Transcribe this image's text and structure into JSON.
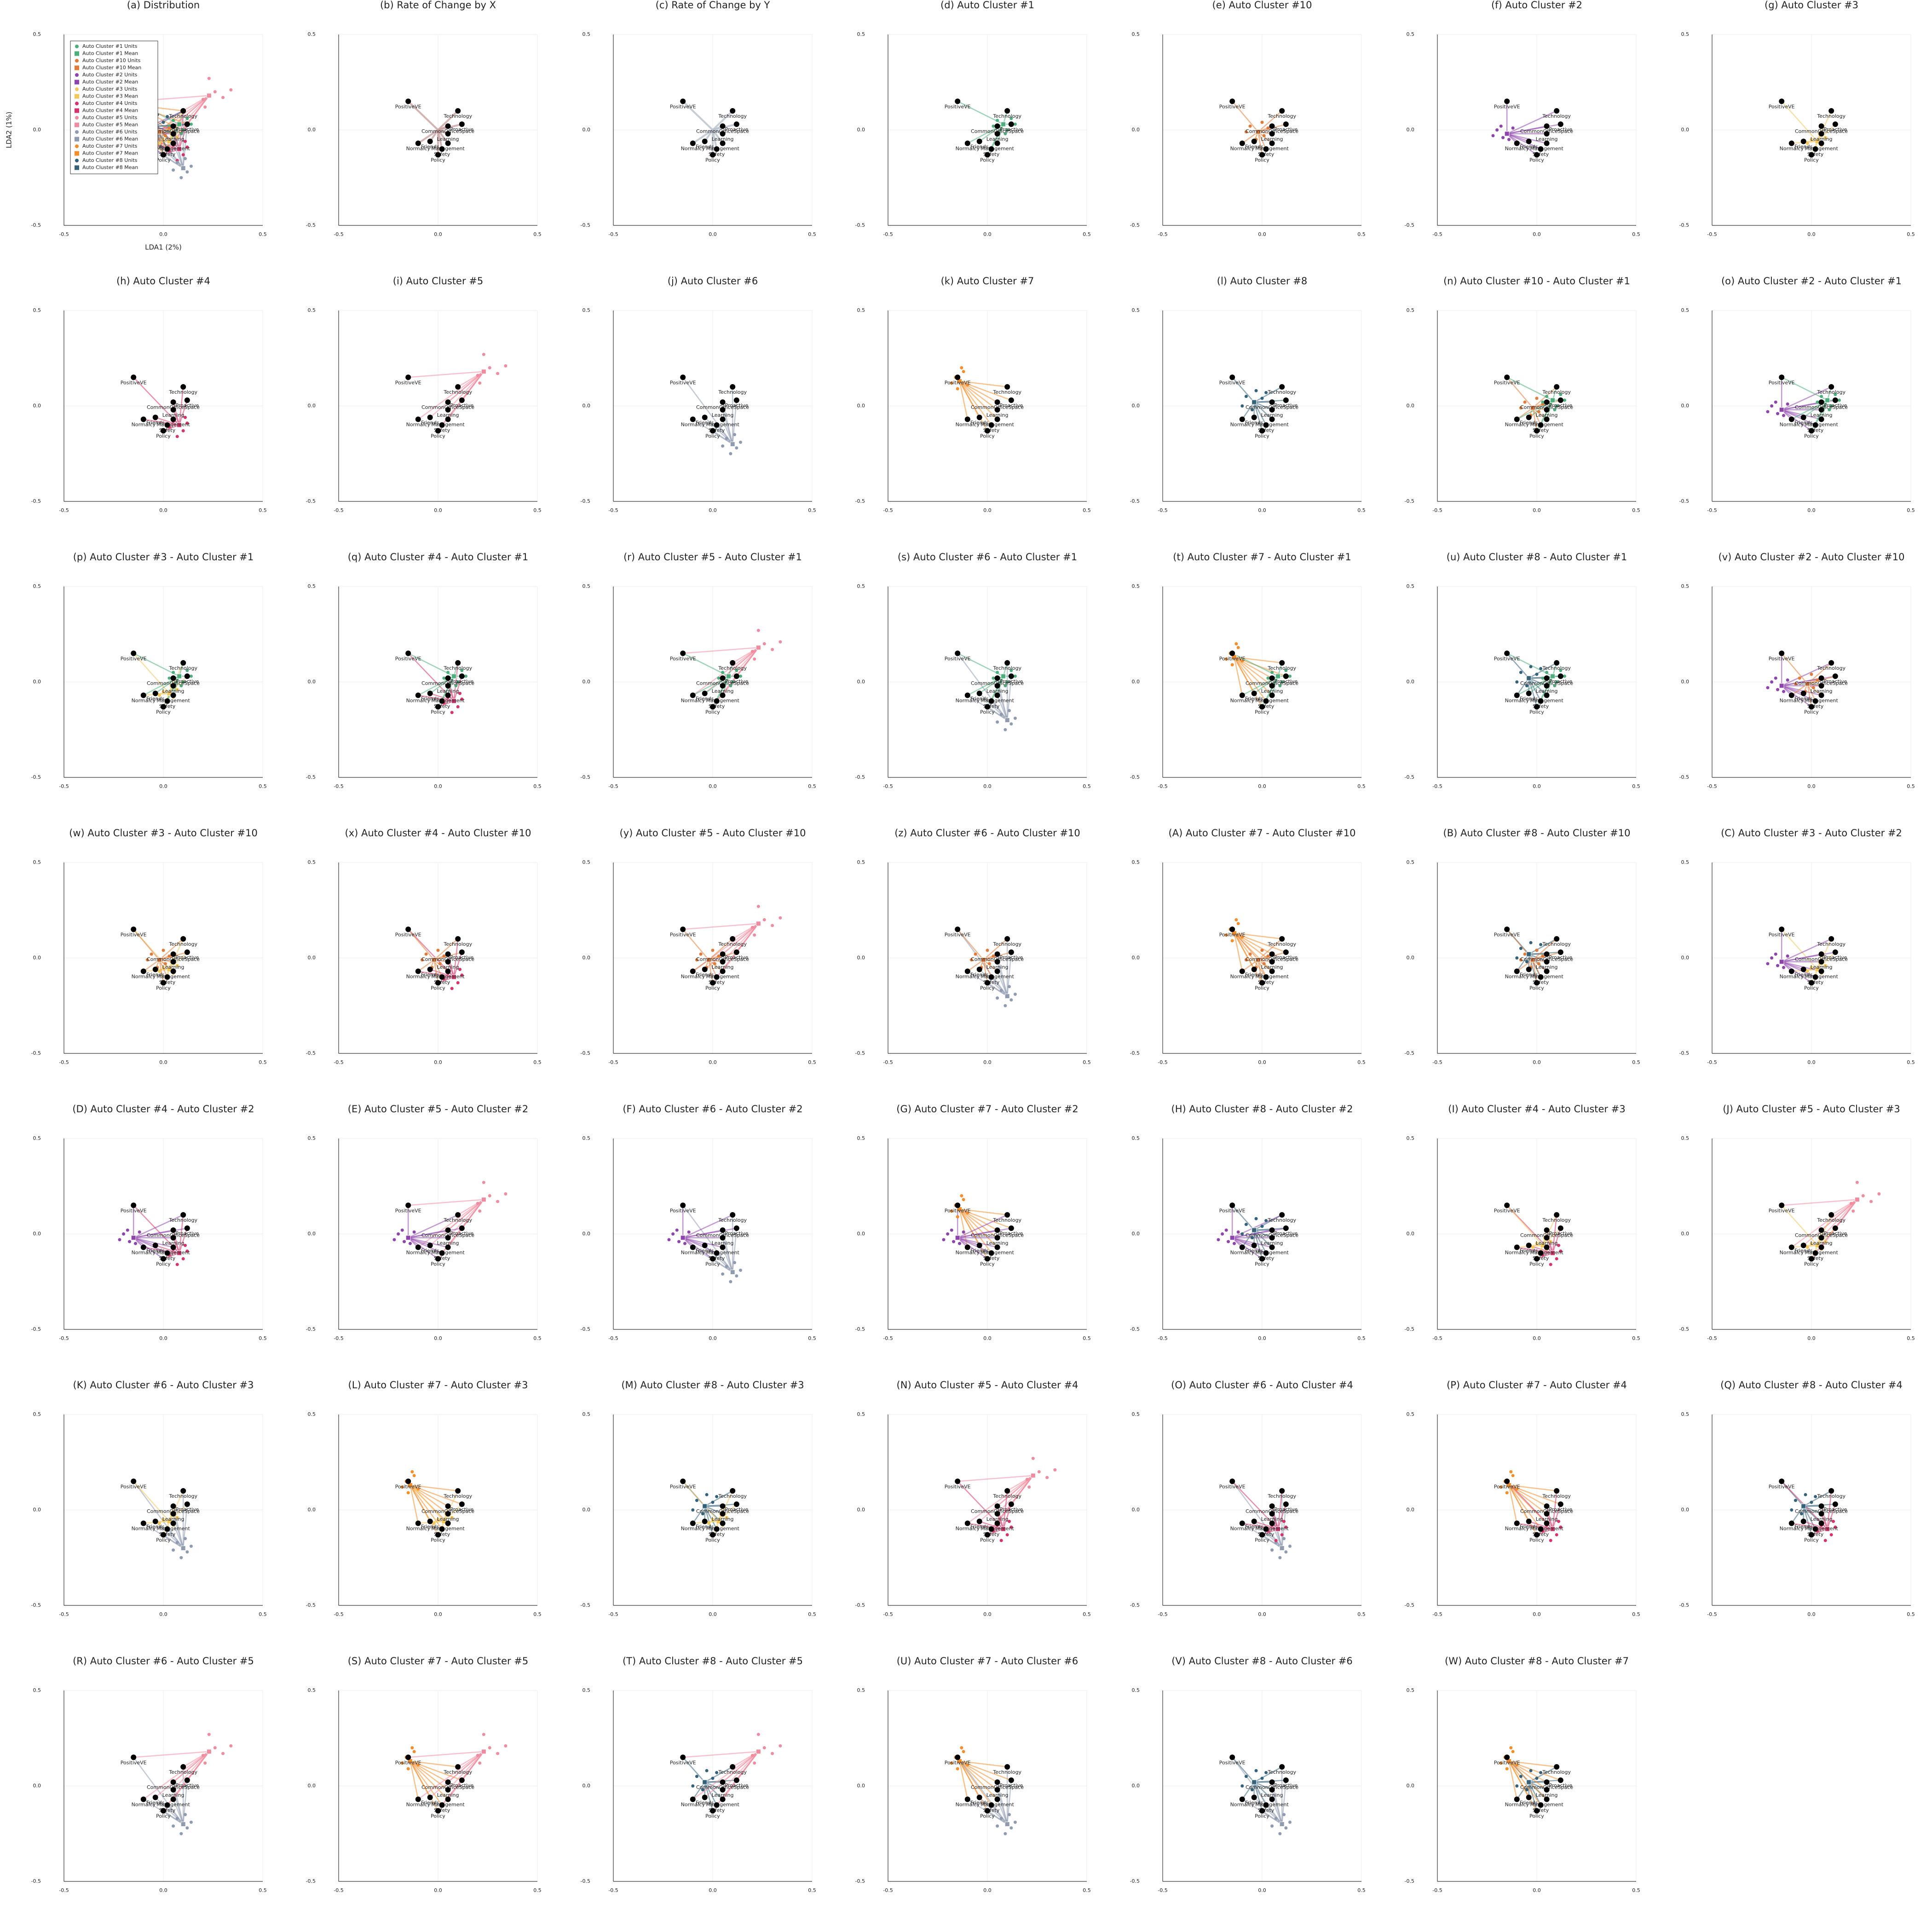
{
  "chart_data": {
    "type": "scatter",
    "xlabel": "LDA1 (2%)",
    "ylabel": "LDA2 (1%)",
    "xlim": [
      -0.5,
      0.5
    ],
    "ylim": [
      -0.5,
      0.5
    ],
    "xticks": [
      -0.5,
      {
        "value": 0,
        "label": "0.0"
      },
      0.5
    ],
    "yticks": [
      -0.5,
      {
        "value": 0,
        "label": "0.0"
      },
      0.5
    ],
    "grid": true,
    "legend": "upper left",
    "clusters": [
      {
        "units_label": "Auto Cluster #1 Units",
        "mean_label": "Auto Cluster #1 Mean",
        "color": "#4daf7c",
        "mean_x": 0.08,
        "mean_y": 0.03,
        "units_x": [
          0.05,
          0.1,
          0.12,
          0.03,
          0.09,
          0.14
        ],
        "units_y": [
          0.05,
          0.0,
          0.06,
          0.02,
          -0.02,
          0.03
        ]
      },
      {
        "units_label": "Auto Cluster #10 Units",
        "mean_label": "Auto Cluster #10 Mean",
        "color": "#e07b39",
        "mean_x": -0.02,
        "mean_y": -0.01,
        "units_x": [
          -0.06,
          0.01,
          -0.03,
          0.03,
          -0.08,
          0.0
        ],
        "units_y": [
          0.02,
          -0.03,
          -0.05,
          0.01,
          -0.01,
          0.04
        ]
      },
      {
        "units_label": "Auto Cluster #2 Units",
        "mean_label": "Auto Cluster #2 Mean",
        "color": "#8e44ad",
        "mean_x": -0.15,
        "mean_y": -0.02,
        "units_x": [
          -0.2,
          -0.17,
          -0.12,
          -0.22,
          -0.14,
          -0.18
        ],
        "units_y": [
          0.0,
          -0.04,
          0.01,
          -0.03,
          -0.05,
          0.02
        ]
      },
      {
        "units_label": "Auto Cluster #3 Units",
        "mean_label": "Auto Cluster #3 Mean",
        "color": "#f2c75c",
        "mean_x": 0.03,
        "mean_y": -0.06,
        "units_x": [
          0.0,
          0.05,
          -0.02,
          0.07,
          0.02,
          0.04
        ],
        "units_y": [
          -0.05,
          -0.08,
          -0.07,
          -0.04,
          -0.1,
          -0.02
        ]
      },
      {
        "units_label": "Auto Cluster #4 Units",
        "mean_label": "Auto Cluster #4 Mean",
        "color": "#d6336c",
        "mean_x": 0.08,
        "mean_y": -0.1,
        "units_x": [
          0.05,
          0.1,
          0.12,
          0.07,
          0.03,
          0.11
        ],
        "units_y": [
          -0.08,
          -0.13,
          -0.09,
          -0.16,
          -0.11,
          -0.06
        ]
      },
      {
        "units_label": "Auto Cluster #5 Units",
        "mean_label": "Auto Cluster #5 Mean",
        "color": "#f08ca0",
        "mean_x": 0.23,
        "mean_y": 0.18,
        "units_x": [
          0.2,
          0.26,
          0.23,
          0.3,
          0.21,
          0.34
        ],
        "units_y": [
          0.16,
          0.2,
          0.27,
          0.17,
          0.12,
          0.21
        ]
      },
      {
        "units_label": "Auto Cluster #6 Units",
        "mean_label": "Auto Cluster #6 Mean",
        "color": "#8f9bb0",
        "mean_x": 0.1,
        "mean_y": -0.2,
        "units_x": [
          0.07,
          0.12,
          0.09,
          0.14,
          0.05,
          0.11
        ],
        "units_y": [
          -0.17,
          -0.22,
          -0.25,
          -0.19,
          -0.21,
          -0.15
        ]
      },
      {
        "units_label": "Auto Cluster #7 Units",
        "mean_label": "Auto Cluster #7 Mean",
        "color": "#f28e2b",
        "mean_x": -0.14,
        "mean_y": 0.13,
        "units_x": [
          -0.16,
          -0.12,
          -0.1,
          -0.18,
          -0.13,
          -0.15
        ],
        "units_y": [
          0.15,
          0.18,
          0.11,
          0.12,
          0.2,
          0.09
        ]
      },
      {
        "units_label": "Auto Cluster #8 Units",
        "mean_label": "Auto Cluster #8 Mean",
        "color": "#34627a",
        "mean_x": -0.04,
        "mean_y": 0.02,
        "units_x": [
          -0.08,
          0.0,
          -0.05,
          -0.1,
          0.02,
          -0.03
        ],
        "units_y": [
          0.05,
          0.04,
          -0.02,
          0.0,
          0.07,
          0.08
        ]
      }
    ],
    "features": [
      {
        "name": "PositiveVE",
        "x": -0.15,
        "y": 0.15
      },
      {
        "name": "Technology",
        "x": 0.1,
        "y": 0.1
      },
      {
        "name": "CommonOfficeSpace",
        "x": 0.05,
        "y": 0.02
      },
      {
        "name": "Proactive",
        "x": 0.12,
        "y": 0.03
      },
      {
        "name": "Learning",
        "x": 0.05,
        "y": -0.02
      },
      {
        "name": "Normalcy",
        "x": -0.1,
        "y": -0.07
      },
      {
        "name": "Friends",
        "x": -0.04,
        "y": -0.06
      },
      {
        "name": "Management",
        "x": 0.05,
        "y": -0.07
      },
      {
        "name": "Safety",
        "x": 0.02,
        "y": -0.1
      },
      {
        "name": "Policy",
        "x": 0.0,
        "y": -0.13
      }
    ],
    "panels": [
      {
        "title": "(a) Distribution",
        "clusters": [
          0,
          1,
          2,
          3,
          4,
          5,
          6,
          7,
          8
        ]
      },
      {
        "title": "(b) Rate of Change by X",
        "clusters": [],
        "line_color": "#c9a0a0"
      },
      {
        "title": "(c) Rate of Change by Y",
        "clusters": [],
        "line_color": "#b8c0cc"
      },
      {
        "title": "(d) Auto Cluster #1",
        "clusters": [
          0
        ]
      },
      {
        "title": "(e) Auto Cluster #10",
        "clusters": [
          1
        ]
      },
      {
        "title": "(f) Auto Cluster #2",
        "clusters": [
          2
        ]
      },
      {
        "title": "(g) Auto Cluster #3",
        "clusters": [
          3
        ]
      },
      {
        "title": "(h) Auto Cluster #4",
        "clusters": [
          4
        ]
      },
      {
        "title": "(i) Auto Cluster #5",
        "clusters": [
          5
        ]
      },
      {
        "title": "(j) Auto Cluster #6",
        "clusters": [
          6
        ]
      },
      {
        "title": "(k) Auto Cluster #7",
        "clusters": [
          7
        ]
      },
      {
        "title": "(l) Auto Cluster #8",
        "clusters": [
          8
        ]
      },
      {
        "title": "(n) Auto Cluster #10 - Auto Cluster #1",
        "clusters": [
          1,
          0
        ]
      },
      {
        "title": "(o) Auto Cluster #2 - Auto Cluster #1",
        "clusters": [
          2,
          0
        ]
      },
      {
        "title": "(p) Auto Cluster #3 - Auto Cluster #1",
        "clusters": [
          3,
          0
        ]
      },
      {
        "title": "(q) Auto Cluster #4 - Auto Cluster #1",
        "clusters": [
          4,
          0
        ]
      },
      {
        "title": "(r) Auto Cluster #5 - Auto Cluster #1",
        "clusters": [
          5,
          0
        ]
      },
      {
        "title": "(s) Auto Cluster #6 - Auto Cluster #1",
        "clusters": [
          6,
          0
        ]
      },
      {
        "title": "(t) Auto Cluster #7 - Auto Cluster #1",
        "clusters": [
          7,
          0
        ]
      },
      {
        "title": "(u) Auto Cluster #8 - Auto Cluster #1",
        "clusters": [
          8,
          0
        ]
      },
      {
        "title": "(v) Auto Cluster #2 - Auto Cluster #10",
        "clusters": [
          2,
          1
        ]
      },
      {
        "title": "(w) Auto Cluster #3 - Auto Cluster #10",
        "clusters": [
          3,
          1
        ]
      },
      {
        "title": "(x) Auto Cluster #4 - Auto Cluster #10",
        "clusters": [
          4,
          1
        ]
      },
      {
        "title": "(y) Auto Cluster #5 - Auto Cluster #10",
        "clusters": [
          5,
          1
        ]
      },
      {
        "title": "(z) Auto Cluster #6 - Auto Cluster #10",
        "clusters": [
          6,
          1
        ]
      },
      {
        "title": "(A) Auto Cluster #7 - Auto Cluster #10",
        "clusters": [
          7,
          1
        ]
      },
      {
        "title": "(B) Auto Cluster #8 - Auto Cluster #10",
        "clusters": [
          8,
          1
        ]
      },
      {
        "title": "(C) Auto Cluster #3 - Auto Cluster #2",
        "clusters": [
          3,
          2
        ]
      },
      {
        "title": "(D) Auto Cluster #4 - Auto Cluster #2",
        "clusters": [
          4,
          2
        ]
      },
      {
        "title": "(E) Auto Cluster #5 - Auto Cluster #2",
        "clusters": [
          5,
          2
        ]
      },
      {
        "title": "(F) Auto Cluster #6 - Auto Cluster #2",
        "clusters": [
          6,
          2
        ]
      },
      {
        "title": "(G) Auto Cluster #7 - Auto Cluster #2",
        "clusters": [
          7,
          2
        ]
      },
      {
        "title": "(H) Auto Cluster #8 - Auto Cluster #2",
        "clusters": [
          8,
          2
        ]
      },
      {
        "title": "(I) Auto Cluster #4 - Auto Cluster #3",
        "clusters": [
          4,
          3
        ]
      },
      {
        "title": "(J) Auto Cluster #5 - Auto Cluster #3",
        "clusters": [
          5,
          3
        ]
      },
      {
        "title": "(K) Auto Cluster #6 - Auto Cluster #3",
        "clusters": [
          6,
          3
        ]
      },
      {
        "title": "(L) Auto Cluster #7 - Auto Cluster #3",
        "clusters": [
          7,
          3
        ]
      },
      {
        "title": "(M) Auto Cluster #8 - Auto Cluster #3",
        "clusters": [
          8,
          3
        ]
      },
      {
        "title": "(N) Auto Cluster #5 - Auto Cluster #4",
        "clusters": [
          5,
          4
        ]
      },
      {
        "title": "(O) Auto Cluster #6 - Auto Cluster #4",
        "clusters": [
          6,
          4
        ]
      },
      {
        "title": "(P) Auto Cluster #7 - Auto Cluster #4",
        "clusters": [
          7,
          4
        ]
      },
      {
        "title": "(Q) Auto Cluster #8 - Auto Cluster #4",
        "clusters": [
          8,
          4
        ]
      },
      {
        "title": "(R) Auto Cluster #6 - Auto Cluster #5",
        "clusters": [
          6,
          5
        ]
      },
      {
        "title": "(S) Auto Cluster #7 - Auto Cluster #5",
        "clusters": [
          7,
          5
        ]
      },
      {
        "title": "(T) Auto Cluster #8 - Auto Cluster #5",
        "clusters": [
          8,
          5
        ]
      },
      {
        "title": "(U) Auto Cluster #7 - Auto Cluster #6",
        "clusters": [
          7,
          6
        ]
      },
      {
        "title": "(V) Auto Cluster #8 - Auto Cluster #6",
        "clusters": [
          8,
          6
        ]
      },
      {
        "title": "(W) Auto Cluster #8 - Auto Cluster #7",
        "clusters": [
          8,
          7
        ]
      }
    ]
  }
}
